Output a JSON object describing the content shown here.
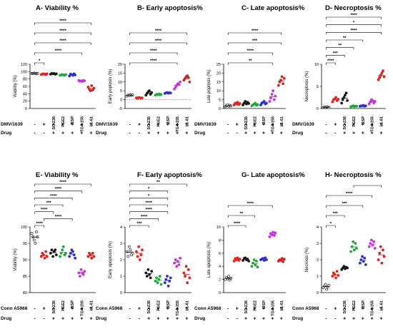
{
  "colors": [
    "#000000",
    "#e8211f",
    "#1a1a1a",
    "#1fa83a",
    "#2b32c8",
    "#c334d9",
    "#d0241f"
  ],
  "groups": [
    "",
    "",
    "SC-236",
    "PGE2",
    "BSP",
    "TG4-155",
    "L1-61"
  ],
  "chart_data": [
    {
      "type": "scatter",
      "title": "A- Viability %",
      "ylabel": "Viability (%)",
      "ylim": [
        0,
        120
      ],
      "yticks": [
        "0",
        "20",
        "40",
        "60",
        "80",
        "100",
        "120"
      ],
      "row1_label": "DMV/1639",
      "row1": [
        "-",
        "+",
        "+",
        "+",
        "+",
        "+",
        "+"
      ],
      "row2_label": "Drug",
      "row2": [
        "-",
        "-",
        "+",
        "+",
        "+",
        "+",
        "+"
      ],
      "values": [
        [
          95,
          95,
          96,
          95,
          94,
          95
        ],
        [
          92,
          93,
          94,
          93,
          92,
          94
        ],
        [
          93,
          95,
          94,
          95,
          93,
          94
        ],
        [
          90,
          91,
          92,
          91,
          90,
          92
        ],
        [
          88,
          93,
          92,
          90,
          94,
          91
        ],
        [
          76,
          74,
          75,
          73,
          76,
          75
        ],
        [
          58,
          52,
          48,
          62,
          50,
          55
        ]
      ],
      "brackets": [
        {
          "from": 0,
          "to": 1,
          "label": "*"
        },
        {
          "from": 0,
          "to": 5,
          "label": "****"
        },
        {
          "from": 0,
          "to": 6,
          "label": "****"
        },
        {
          "from": 0,
          "to": 6,
          "label": "****"
        },
        {
          "from": 0,
          "to": 6,
          "label": "****"
        }
      ],
      "baseline": null
    },
    {
      "type": "scatter",
      "title": "B- Early apoptosis%",
      "ylabel": "Early poptosis (%)",
      "ylim": [
        -5,
        20
      ],
      "yticks": [
        "-5",
        "0",
        "5",
        "10",
        "15",
        "20"
      ],
      "row1_label": "DMV/1639",
      "row1": [
        "-",
        "+",
        "+",
        "+",
        "+",
        "+",
        "+"
      ],
      "row2_label": "Drug",
      "row2": [
        "-",
        "-",
        "+",
        "+",
        "+",
        "+",
        "+"
      ],
      "values": [
        [
          2,
          2.5,
          2.2,
          2.8,
          2.4,
          2.6
        ],
        [
          1,
          0.8,
          1.2,
          1.1,
          0.9,
          1
        ],
        [
          2.5,
          3.5,
          4.5,
          5,
          3,
          4
        ],
        [
          2.5,
          3,
          2.8,
          3.2,
          2.7,
          3
        ],
        [
          3.5,
          3.8,
          4,
          3.6,
          3.9,
          3.7
        ],
        [
          6,
          7,
          8,
          9,
          8.5,
          10
        ],
        [
          11,
          12,
          13,
          13.5,
          12.5,
          10
        ]
      ],
      "brackets": [
        {
          "from": 0,
          "to": 5,
          "label": "****"
        },
        {
          "from": 0,
          "to": 5,
          "label": "****"
        },
        {
          "from": 0,
          "to": 6,
          "label": "****"
        },
        {
          "from": 0,
          "to": 6,
          "label": "****"
        }
      ],
      "baseline": 0
    },
    {
      "type": "scatter",
      "title": "C- Late apoptosis%",
      "ylabel": "Late poptosis (%)",
      "ylim": [
        0,
        25
      ],
      "yticks": [
        "0",
        "5",
        "10",
        "15",
        "20",
        "25"
      ],
      "row1_label": "DMV/1639",
      "row1": [
        "-",
        "+",
        "+",
        "+",
        "+",
        "+",
        "+"
      ],
      "row2_label": "Drug",
      "row2": [
        "-",
        "-",
        "+",
        "+",
        "+",
        "+",
        "+"
      ],
      "values": [
        [
          1,
          1.5,
          2,
          1.2,
          1.8,
          1.4
        ],
        [
          2,
          3,
          2.5,
          3.5,
          2.2,
          2.8
        ],
        [
          2,
          3,
          4,
          2.5,
          3.5,
          2.8
        ],
        [
          1.5,
          2,
          2.5,
          3,
          1.8,
          2.2
        ],
        [
          2,
          3,
          3.5,
          4,
          2.5,
          3
        ],
        [
          4,
          6,
          8,
          10,
          5,
          7
        ],
        [
          13,
          15,
          16,
          18,
          14,
          17
        ]
      ],
      "brackets": [
        {
          "from": 0,
          "to": 5,
          "label": "**"
        },
        {
          "from": 0,
          "to": 5,
          "label": "****"
        },
        {
          "from": 0,
          "to": 6,
          "label": "***"
        },
        {
          "from": 0,
          "to": 6,
          "label": "****"
        }
      ],
      "baseline": null
    },
    {
      "type": "scatter",
      "title": "D- Necroptosis %",
      "ylabel": "Necroptosis (%)",
      "ylim": [
        0,
        10
      ],
      "yticks": [
        "0",
        "5",
        "10"
      ],
      "row1_label": "DMV/1639",
      "row1": [
        "-",
        "+",
        "+",
        "+",
        "+",
        "+",
        "+"
      ],
      "row2_label": "Drug",
      "row2": [
        "-",
        "-",
        "+",
        "+",
        "+",
        "+",
        "+"
      ],
      "values": [
        [
          0.2,
          0.3,
          0.25,
          0.35,
          0.3,
          0.2
        ],
        [
          1.5,
          2,
          2.2,
          2.5,
          1.8,
          2.1
        ],
        [
          1.2,
          2,
          2.5,
          3,
          3.5,
          1.8
        ],
        [
          0.4,
          0.5,
          0.6,
          0.45,
          0.55,
          0.5
        ],
        [
          0.5,
          0.6,
          0.55,
          0.7,
          0.5,
          0.6
        ],
        [
          1,
          1.5,
          2,
          1.8,
          1.2,
          1.6
        ],
        [
          6.5,
          7,
          7.5,
          8,
          8.5,
          7.2
        ]
      ],
      "brackets": [
        {
          "from": 0,
          "to": 1,
          "label": "****"
        },
        {
          "from": 0,
          "to": 2,
          "label": "***"
        },
        {
          "from": 0,
          "to": 3,
          "label": "**"
        },
        {
          "from": 0,
          "to": 4,
          "label": "**"
        },
        {
          "from": 0,
          "to": 6,
          "label": "****"
        },
        {
          "from": 0,
          "to": 6,
          "label": "*"
        },
        {
          "from": 0,
          "to": 6,
          "label": "****"
        }
      ],
      "baseline": null
    },
    {
      "type": "scatter",
      "title": "E- Viability %",
      "ylabel": "Viability (%)",
      "ylim": [
        80,
        100
      ],
      "yticks": [
        "80",
        "85",
        "90",
        "95",
        "100"
      ],
      "row1_label": "Conn A5968",
      "row1": [
        "-",
        "+",
        "+",
        "+",
        "+",
        "+",
        "+"
      ],
      "row2_label": "Drug",
      "row2": [
        "-",
        "-",
        "+",
        "+",
        "+",
        "+",
        "+"
      ],
      "values": [
        [
          98,
          97,
          96,
          95,
          98.5,
          97
        ],
        [
          91,
          92,
          91.5,
          90.5,
          92.5,
          91
        ],
        [
          92,
          93,
          91,
          92.5,
          93,
          91.5
        ],
        [
          91,
          92,
          93,
          94,
          91.5,
          92
        ],
        [
          91,
          92,
          93,
          92.5,
          91.5,
          90.5
        ],
        [
          86,
          85,
          87,
          86,
          85.5,
          86.5
        ],
        [
          91,
          92,
          91.5,
          90.5,
          92,
          91
        ]
      ],
      "brackets": [
        {
          "from": 0,
          "to": 1,
          "label": "****"
        },
        {
          "from": 1,
          "to": 4,
          "label": "****"
        },
        {
          "from": 0,
          "to": 2,
          "label": "****"
        },
        {
          "from": 0,
          "to": 3,
          "label": "***"
        },
        {
          "from": 0,
          "to": 4,
          "label": "****"
        },
        {
          "from": 0,
          "to": 5,
          "label": "****"
        },
        {
          "from": 0,
          "to": 6,
          "label": "****"
        }
      ],
      "baseline": null
    },
    {
      "type": "scatter",
      "title": "F- Early apoptosis%",
      "ylabel": "Early apoptosis (%)",
      "ylim": [
        0,
        4
      ],
      "yticks": [
        "0",
        "1",
        "2",
        "3",
        "4"
      ],
      "row1_label": "Conn A5968",
      "row1": [
        "-",
        "+",
        "+",
        "+",
        "+",
        "+",
        "+"
      ],
      "row2_label": "Drug",
      "row2": [
        "-",
        "-",
        "+",
        "+",
        "+",
        "+",
        "+"
      ],
      "values": [
        [
          2.5,
          2.2,
          2.8,
          2.6,
          2.3,
          2.4
        ],
        [
          2.5,
          2.2,
          2.8,
          2,
          2.3,
          2.6
        ],
        [
          1.2,
          1,
          1.4,
          1.1,
          0.9,
          1.3
        ],
        [
          0.7,
          0.9,
          0.6,
          0.8,
          1,
          0.5
        ],
        [
          0.6,
          0.8,
          1,
          0.4,
          0.7,
          0.9
        ],
        [
          1.8,
          2,
          1.6,
          1.9,
          1.7,
          2.1
        ],
        [
          1.2,
          1,
          1.6,
          0.6,
          1.4,
          0.9
        ]
      ],
      "brackets": [
        {
          "from": 0,
          "to": 2,
          "label": "***"
        },
        {
          "from": 0,
          "to": 3,
          "label": "****"
        },
        {
          "from": 0,
          "to": 4,
          "label": "****"
        },
        {
          "from": 0,
          "to": 4,
          "label": "****"
        },
        {
          "from": 0,
          "to": 4,
          "label": "*"
        },
        {
          "from": 0,
          "to": 4,
          "label": "*"
        },
        {
          "from": 0,
          "to": 6,
          "label": "**"
        }
      ],
      "baseline": null
    },
    {
      "type": "scatter",
      "title": "G- Late apoptosis%",
      "ylabel": "Late apoptosis (%)",
      "ylim": [
        0,
        10
      ],
      "yticks": [
        "0",
        "2",
        "4",
        "6",
        "8",
        "10"
      ],
      "row1_label": "Conn A5968",
      "row1": [
        "-",
        "+",
        "+",
        "+",
        "+",
        "+",
        "+"
      ],
      "row2_label": "Drug",
      "row2": [
        "-",
        "-",
        "+",
        "+",
        "+",
        "+",
        "+"
      ],
      "values": [
        [
          2,
          2.3,
          2.1,
          2.5,
          1.9,
          2.2
        ],
        [
          4.8,
          5.2,
          5,
          5.3,
          4.9,
          5.1
        ],
        [
          4.9,
          5.2,
          5.3,
          5,
          5.1,
          4.8
        ],
        [
          4,
          4.5,
          5,
          4.2,
          4.8,
          3.9
        ],
        [
          5,
          5.1,
          5.2,
          4.9,
          5.3,
          5
        ],
        [
          8.5,
          9,
          8.8,
          9.2,
          8.7,
          9.1
        ],
        [
          4.8,
          5,
          4.9,
          5.2,
          4.7,
          5.1
        ]
      ],
      "brackets": [
        {
          "from": 0,
          "to": 2,
          "label": "****"
        },
        {
          "from": 0,
          "to": 3,
          "label": "**"
        },
        {
          "from": 0,
          "to": 5,
          "label": "****"
        }
      ],
      "baseline": null
    },
    {
      "type": "scatter",
      "title": "H- Necroptosis %",
      "ylabel": "Necrosis (%)",
      "ylim": [
        0,
        4
      ],
      "yticks": [
        "0",
        "1",
        "2",
        "3",
        "4"
      ],
      "row1_label": "Conn A5968",
      "row1": [
        "-",
        "+",
        "+",
        "+",
        "+",
        "+",
        "+"
      ],
      "row2_label": "Drug",
      "row2": [
        "-",
        "-",
        "+",
        "+",
        "+",
        "+",
        "+"
      ],
      "values": [
        [
          0.3,
          0.4,
          0.5,
          0.2,
          0.35,
          0.45
        ],
        [
          1,
          1.2,
          1.1,
          0.9,
          1.3,
          1.05
        ],
        [
          1.4,
          1.5,
          1.6,
          1.45,
          1.55,
          1.5
        ],
        [
          2.5,
          2.8,
          3.1,
          2.6,
          3,
          2.7
        ],
        [
          1.8,
          2,
          2.2,
          1.9,
          2.1,
          1.7
        ],
        [
          2.8,
          3,
          3.2,
          2.9,
          3.1,
          2.7
        ],
        [
          2,
          2.4,
          2.8,
          1.8,
          2.6,
          2.2
        ]
      ],
      "brackets": [
        {
          "from": 0,
          "to": 1,
          "label": "*"
        },
        {
          "from": 0,
          "to": 2,
          "label": "***"
        },
        {
          "from": 0,
          "to": 4,
          "label": "***"
        },
        {
          "from": 0,
          "to": 5,
          "label": "****"
        },
        {
          "from": 3,
          "to": 6,
          "label": ""
        }
      ],
      "baseline": null
    }
  ]
}
